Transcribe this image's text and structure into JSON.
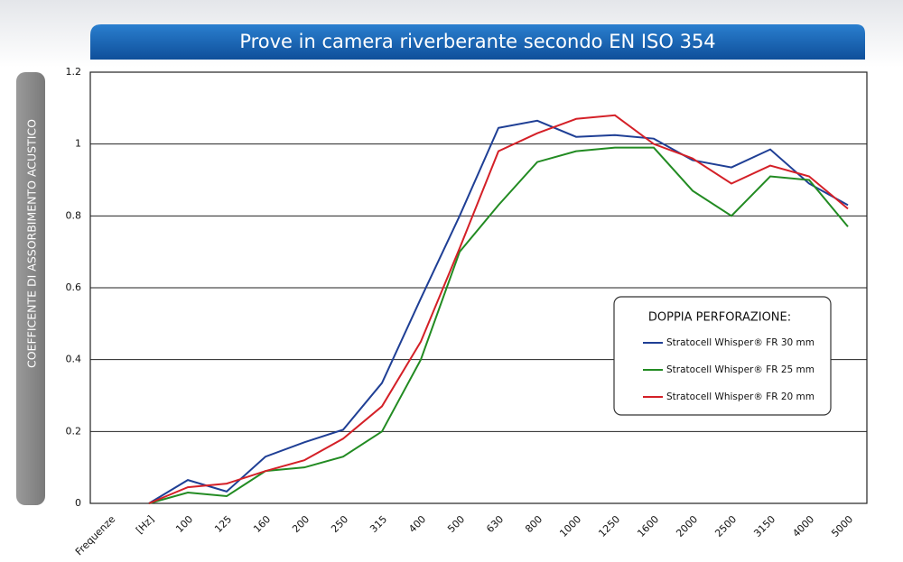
{
  "chart_data": {
    "type": "line",
    "title": "Prove in camera riverberante secondo EN ISO 354",
    "y_label": "COEFFICENTE DI ASSORBIMENTO ACUSTICO",
    "legend_title": "DOPPIA PERFORAZIONE:",
    "categories": [
      "Frequenze",
      "[Hz]",
      "100",
      "125",
      "160",
      "200",
      "250",
      "315",
      "400",
      "500",
      "630",
      "800",
      "1000",
      "1250",
      "1600",
      "2000",
      "2500",
      "3150",
      "4000",
      "5000"
    ],
    "series": [
      {
        "name": "Stratocell Whisper® FR 30 mm",
        "color": "#1f3f95",
        "values": [
          null,
          0,
          0.065,
          0.033,
          0.13,
          0.17,
          0.205,
          0.335,
          0.57,
          0.8,
          1.045,
          1.065,
          1.02,
          1.025,
          1.015,
          0.955,
          0.935,
          0.985,
          0.89,
          0.83
        ]
      },
      {
        "name": "Stratocell Whisper® FR 25 mm",
        "color": "#228b22",
        "values": [
          null,
          0,
          0.03,
          0.02,
          0.09,
          0.1,
          0.13,
          0.2,
          0.4,
          0.7,
          0.83,
          0.95,
          0.98,
          0.99,
          0.99,
          0.87,
          0.8,
          0.91,
          0.9,
          0.77
        ]
      },
      {
        "name": "Stratocell Whisper® FR 20 mm",
        "color": "#d42027",
        "values": [
          null,
          0,
          0.045,
          0.055,
          0.09,
          0.12,
          0.18,
          0.27,
          0.45,
          0.71,
          0.98,
          1.03,
          1.07,
          1.08,
          1.0,
          0.96,
          0.89,
          0.94,
          0.91,
          0.82
        ]
      }
    ],
    "ylim": [
      0,
      1.2
    ],
    "yticks": [
      0,
      0.2,
      0.4,
      0.6,
      0.8,
      1,
      1.2
    ],
    "grid": true
  }
}
